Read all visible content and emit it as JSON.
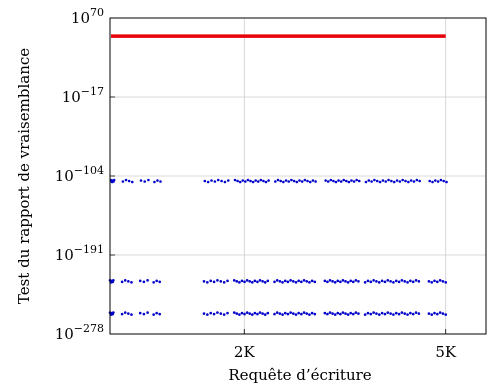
{
  "chart_data": {
    "type": "scatter",
    "xlabel": "Requête d’écriture",
    "ylabel": "Test du rapport de vraisemblance",
    "y_scale": "log",
    "xlim": [
      0,
      5600
    ],
    "ylim_exp": [
      -278,
      70
    ],
    "grid": true,
    "x_ticks": [
      {
        "value": 2000,
        "label": "2K"
      },
      {
        "value": 5000,
        "label": "5K"
      }
    ],
    "y_ticks": [
      {
        "exp": 70,
        "base": "10",
        "sup": "70"
      },
      {
        "exp": -17,
        "base": "10",
        "sup": "−17"
      },
      {
        "exp": -104,
        "base": "10",
        "sup": "−104"
      },
      {
        "exp": -191,
        "base": "10",
        "sup": "−191"
      },
      {
        "exp": -278,
        "base": "10",
        "sup": "−278"
      }
    ],
    "series": [
      {
        "color": "#e8000b",
        "kind": "dense",
        "x_range": [
          0,
          5000
        ],
        "y_exp": 50
      },
      {
        "color": "#0000cc",
        "kind": "scatter",
        "y_exp": -109.5,
        "clusters": [
          [
            0,
            50,
            6
          ],
          [
            180,
            320,
            4
          ],
          [
            450,
            560,
            3
          ],
          [
            650,
            740,
            3
          ],
          [
            1400,
            1750,
            8
          ],
          [
            1850,
            2350,
            14
          ],
          [
            2450,
            3050,
            16
          ],
          [
            3200,
            3700,
            14
          ],
          [
            3800,
            4600,
            20
          ],
          [
            4750,
            5000,
            7
          ]
        ]
      },
      {
        "color": "#0000cc",
        "kind": "scatter",
        "y_exp": -220,
        "clusters": [
          [
            0,
            50,
            6
          ],
          [
            180,
            320,
            4
          ],
          [
            450,
            560,
            3
          ],
          [
            650,
            740,
            3
          ],
          [
            1400,
            1750,
            8
          ],
          [
            1850,
            2350,
            14
          ],
          [
            2450,
            3050,
            16
          ],
          [
            3200,
            3700,
            14
          ],
          [
            3800,
            4600,
            20
          ],
          [
            4750,
            5000,
            7
          ]
        ]
      },
      {
        "color": "#0000cc",
        "kind": "scatter",
        "y_exp": -255.5,
        "clusters": [
          [
            0,
            50,
            6
          ],
          [
            180,
            320,
            4
          ],
          [
            450,
            560,
            3
          ],
          [
            650,
            740,
            3
          ],
          [
            1400,
            1750,
            8
          ],
          [
            1850,
            2350,
            14
          ],
          [
            2450,
            3050,
            16
          ],
          [
            3200,
            3700,
            14
          ],
          [
            3800,
            4600,
            20
          ],
          [
            4750,
            5000,
            7
          ]
        ]
      }
    ]
  }
}
